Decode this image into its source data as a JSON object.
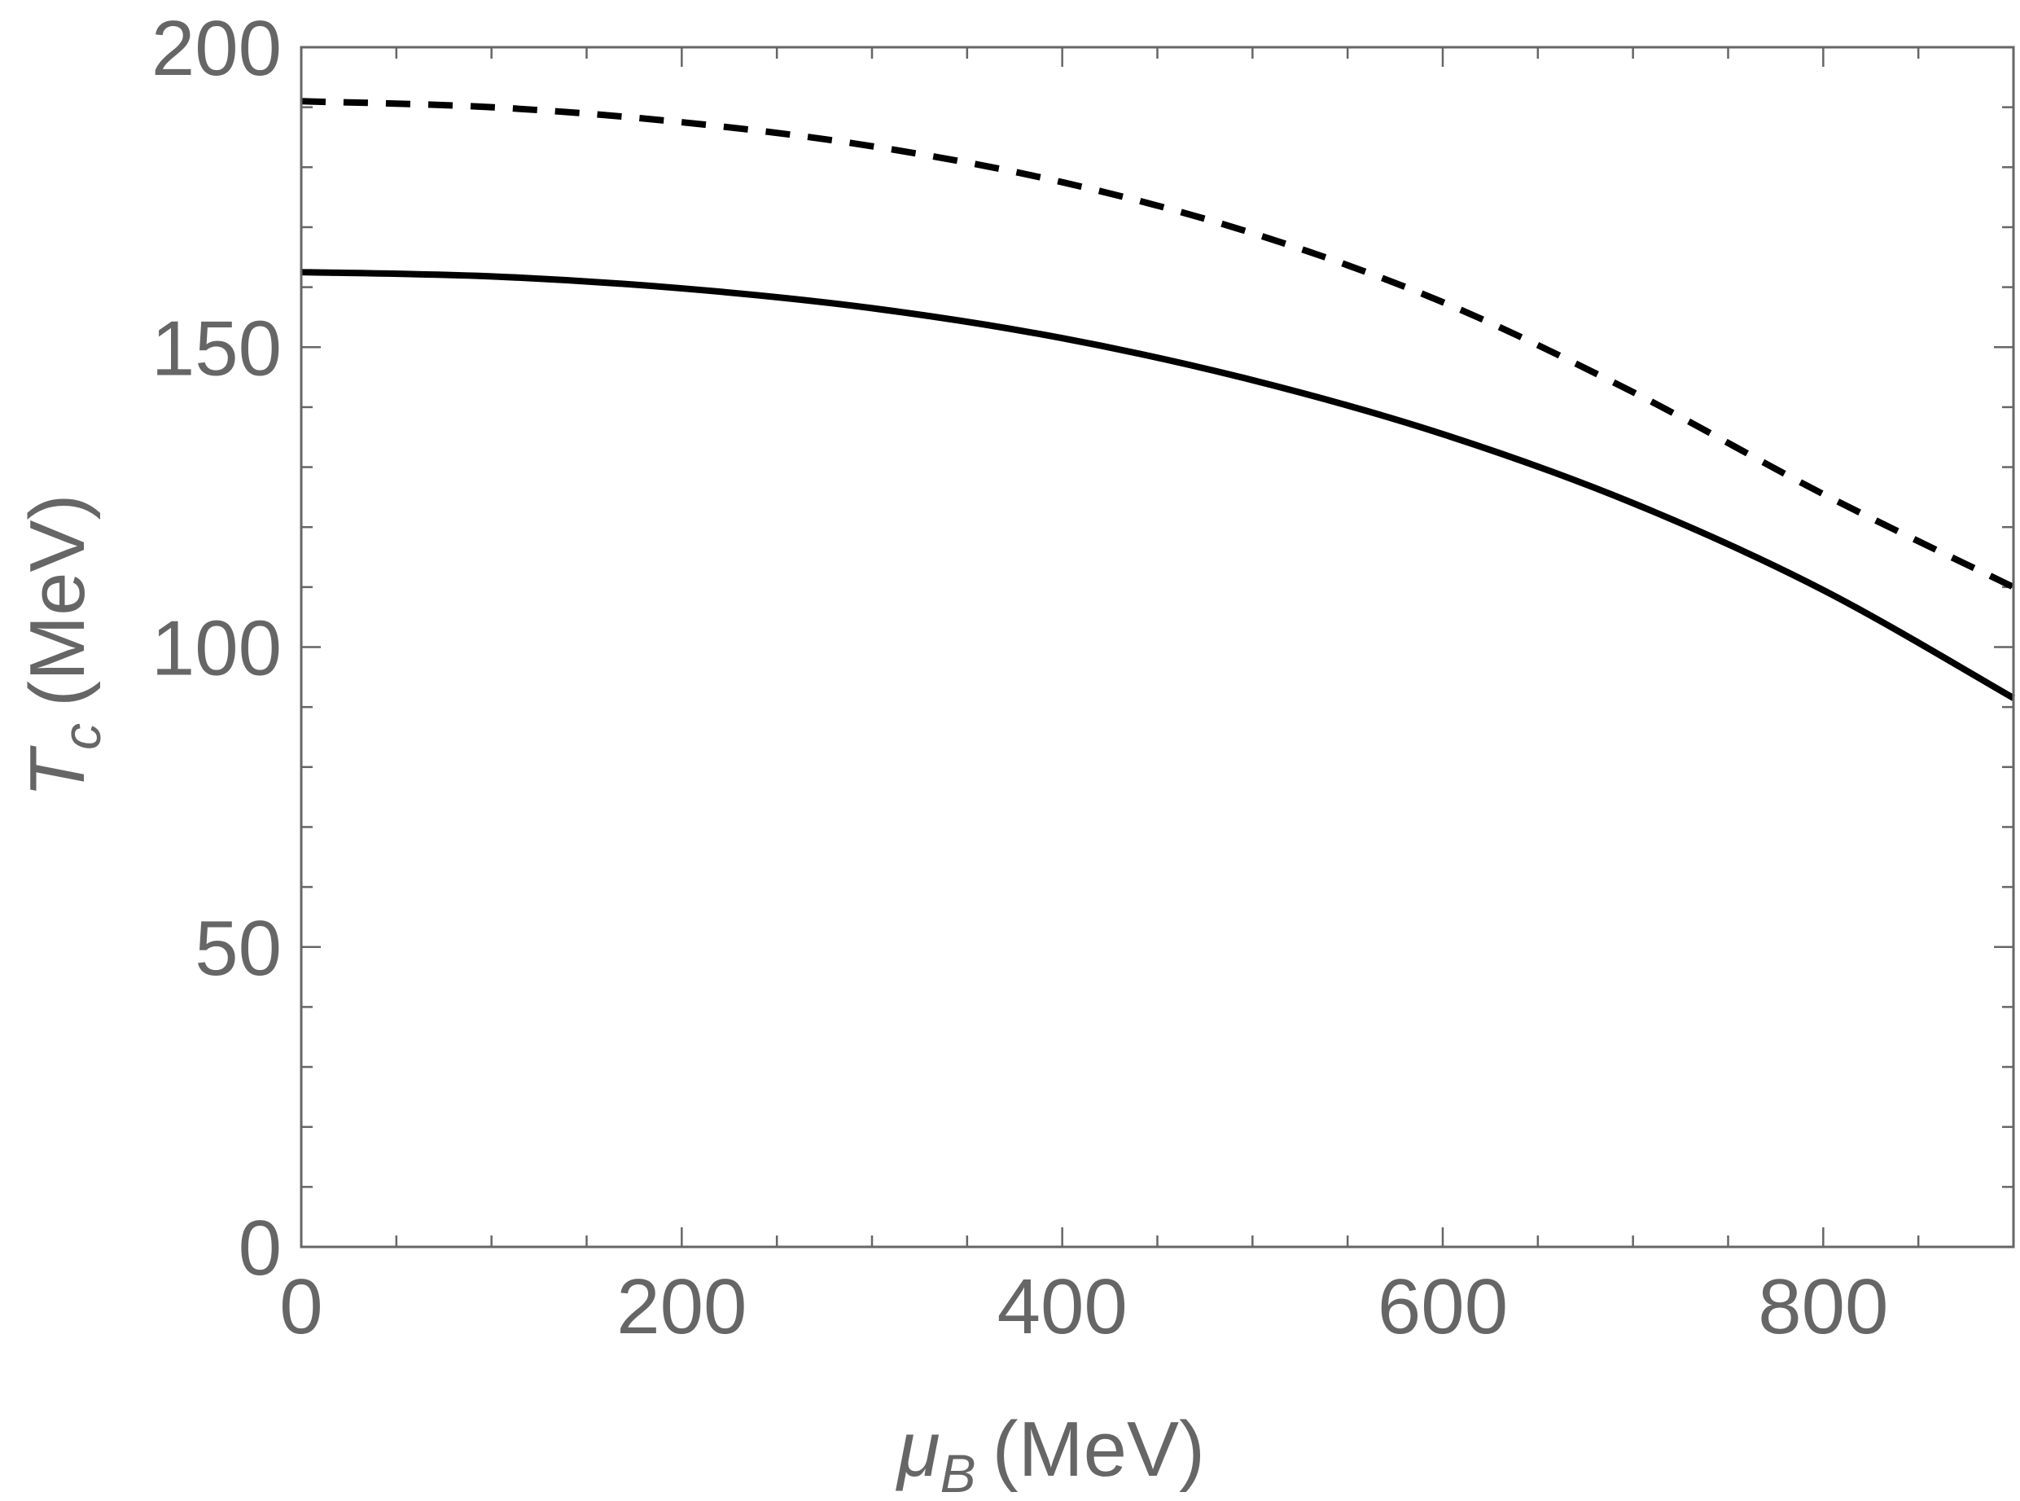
{
  "chart_data": {
    "type": "line",
    "title": "",
    "xlabel": {
      "symbol": "μ",
      "subscript": "B",
      "unit": "(MeV)"
    },
    "ylabel": {
      "symbol": "T",
      "subscript": "c",
      "unit": "(MeV)"
    },
    "xlim": [
      0,
      900
    ],
    "ylim": [
      0,
      200
    ],
    "xticks": [
      0,
      200,
      400,
      600,
      800
    ],
    "yticks": [
      0,
      50,
      100,
      150,
      200
    ],
    "xminor_step": 50,
    "yminor_step": 10,
    "grid": false,
    "legend": "none",
    "colors": {
      "axis": "#666666",
      "line": "#000000",
      "background": "#ffffff"
    },
    "series": [
      {
        "style": "solid",
        "x": [
          0,
          100,
          200,
          300,
          400,
          500,
          600,
          700,
          800,
          900
        ],
        "y": [
          162.5,
          161.8,
          159.8,
          156.5,
          151.5,
          144.5,
          135.5,
          124.0,
          109.5,
          91.5
        ]
      },
      {
        "style": "dashed",
        "x": [
          0,
          100,
          200,
          300,
          400,
          500,
          600,
          700,
          800,
          900
        ],
        "y": [
          191.0,
          190.0,
          187.5,
          183.5,
          177.5,
          169.0,
          157.5,
          142.5,
          125.5,
          110.0
        ]
      }
    ]
  }
}
